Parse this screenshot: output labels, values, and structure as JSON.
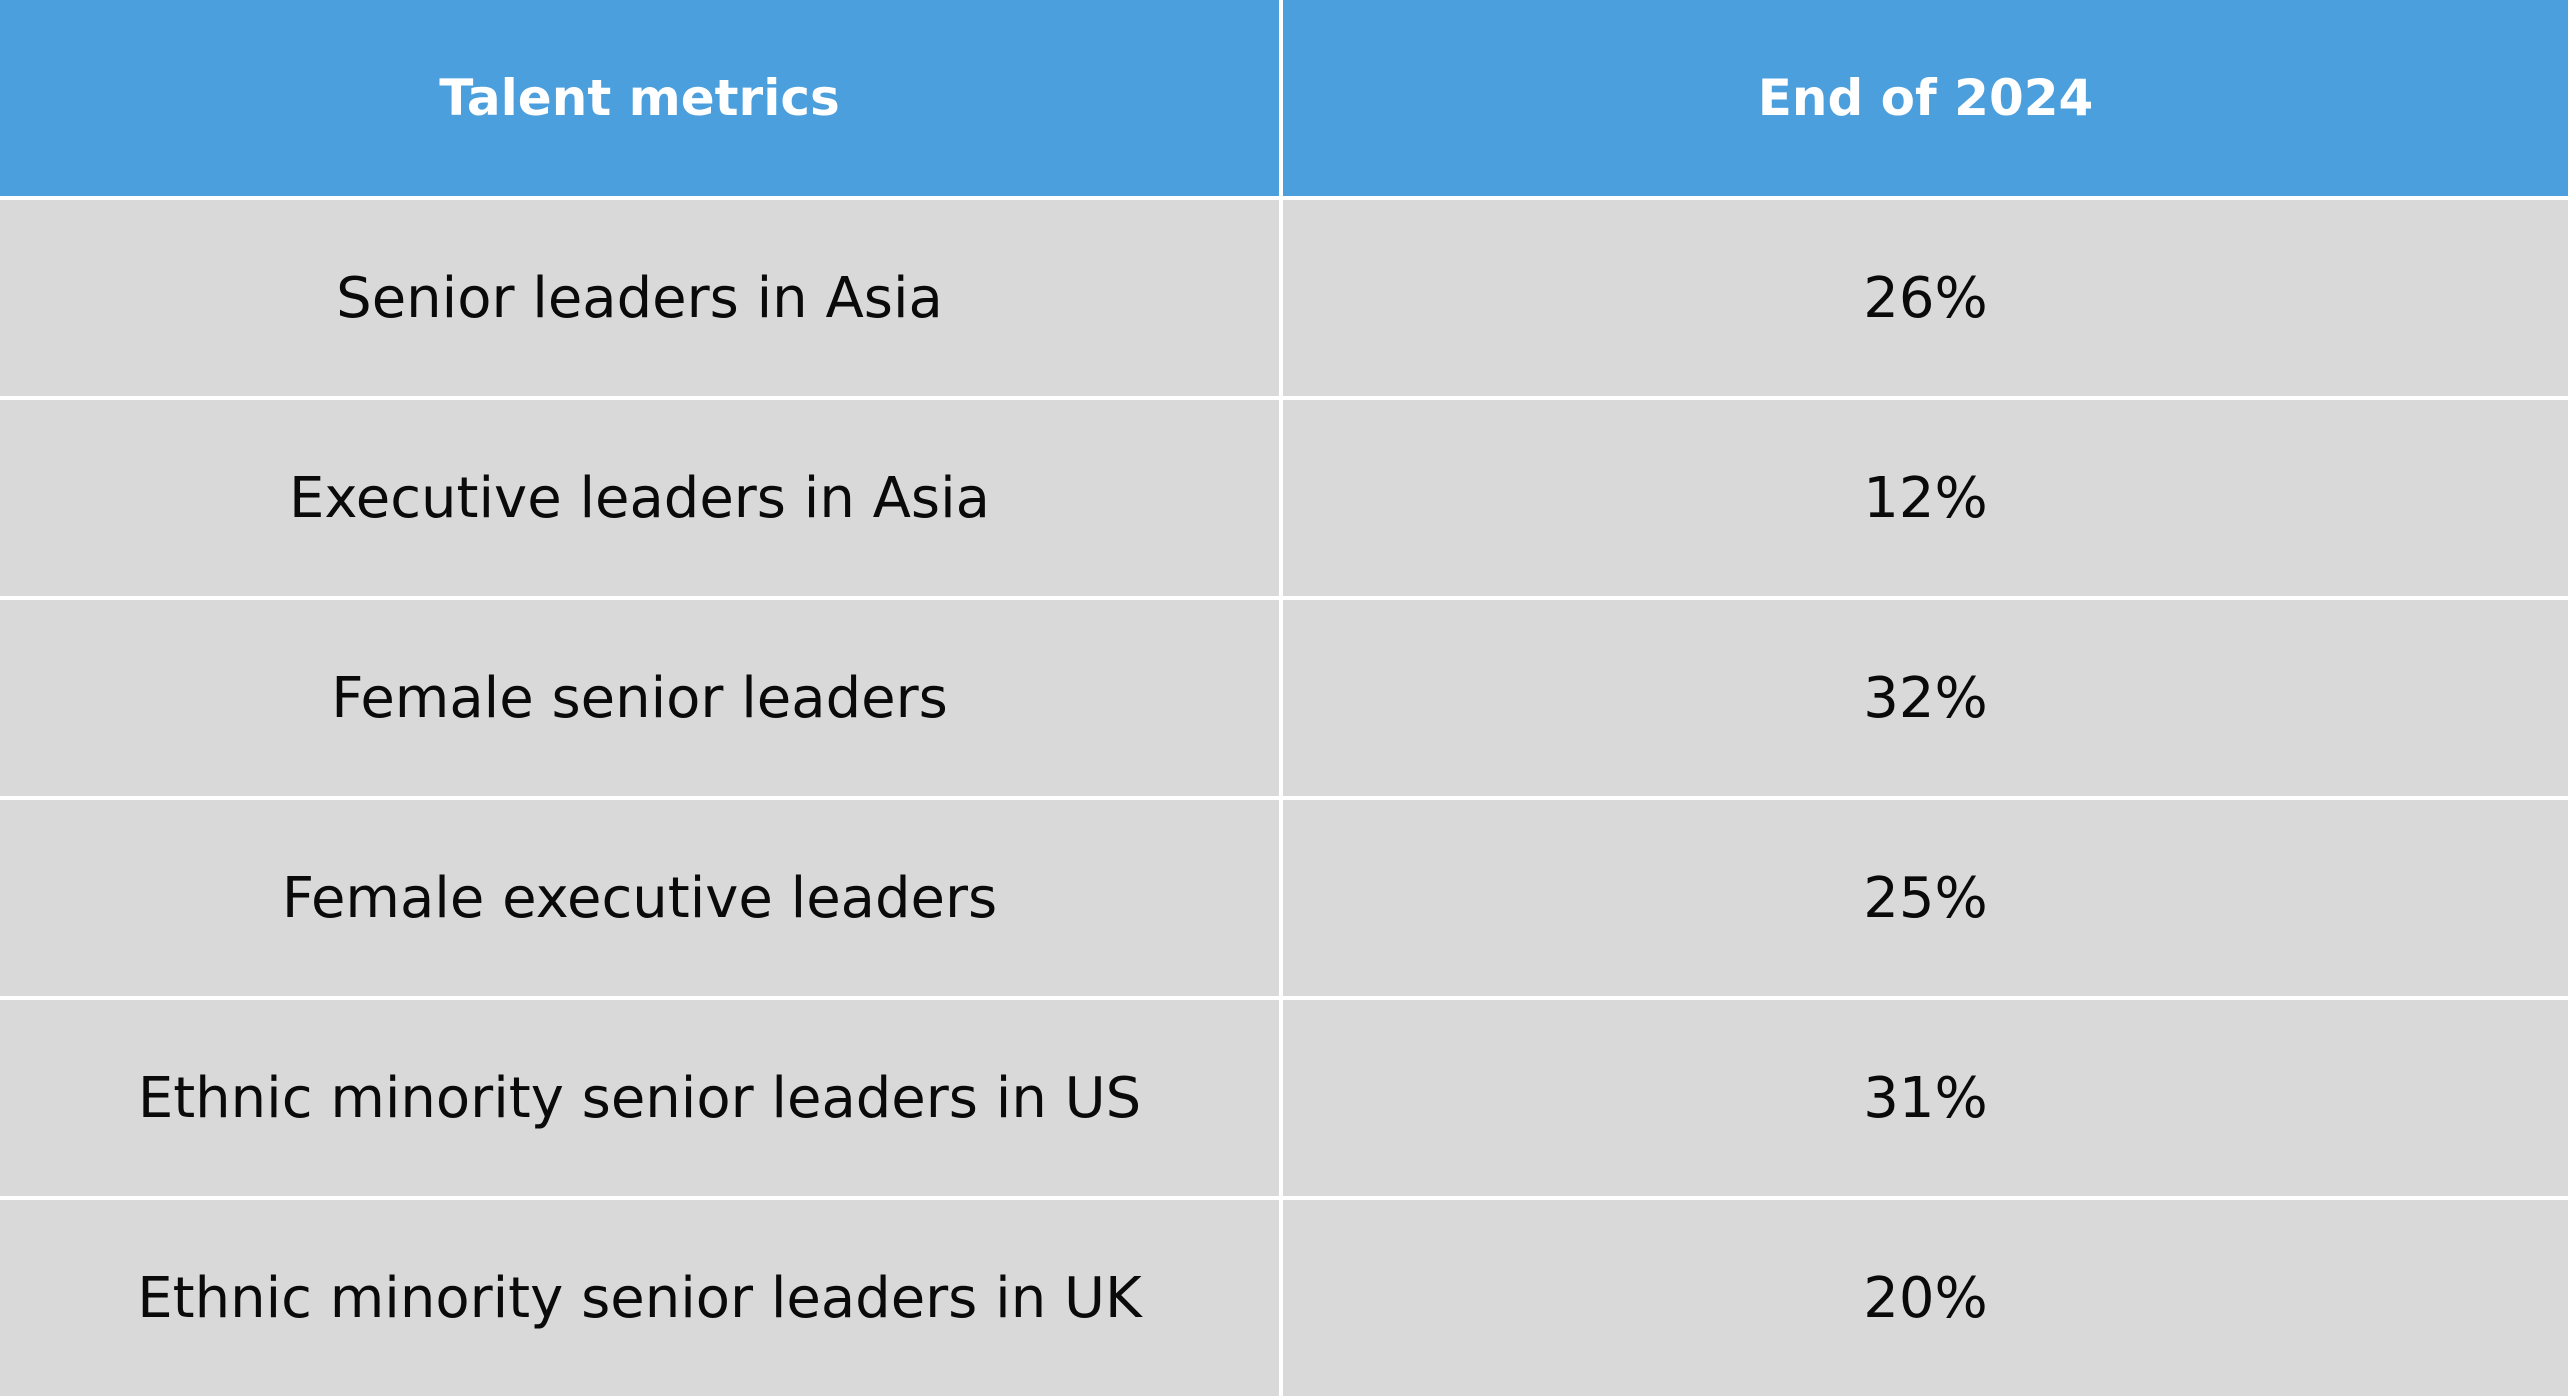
{
  "table": {
    "headers": [
      "Talent metrics",
      "End of 2024"
    ],
    "rows": [
      {
        "metric": "Senior leaders in Asia",
        "value": "26%"
      },
      {
        "metric": "Executive leaders in Asia",
        "value": "12%"
      },
      {
        "metric": "Female senior leaders",
        "value": "32%"
      },
      {
        "metric": "Female executive leaders",
        "value": "25%"
      },
      {
        "metric": "Ethnic minority senior leaders in US",
        "value": "31%"
      },
      {
        "metric": "Ethnic minority senior leaders in UK",
        "value": "20%"
      }
    ]
  },
  "colors": {
    "header_bg": "#4b9fdc",
    "header_text": "#ffffff",
    "row_bg": "#d9d9d9",
    "grid_lines": "#ffffff"
  }
}
